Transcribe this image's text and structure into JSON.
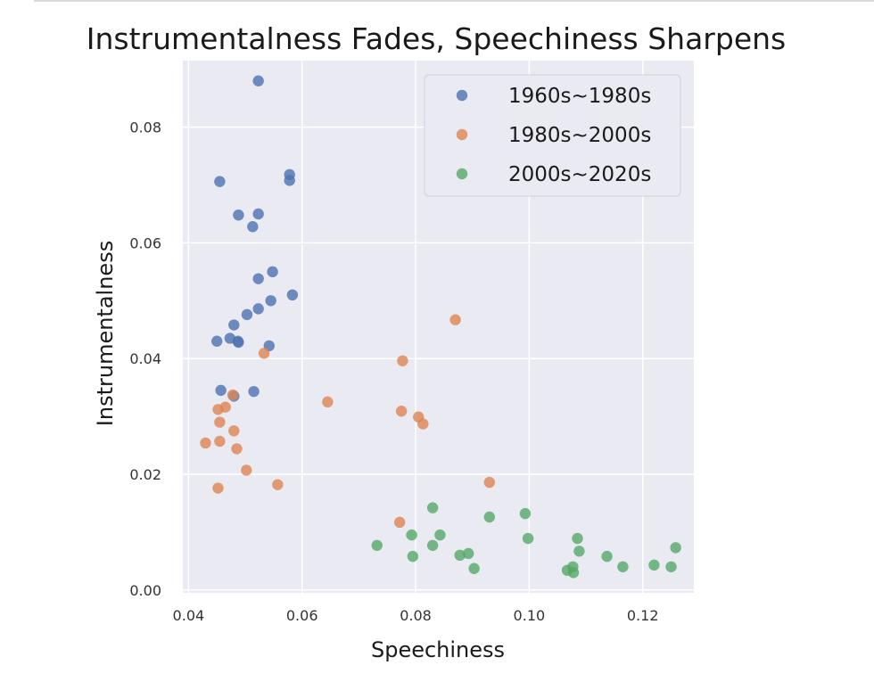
{
  "chart_data": {
    "type": "scatter",
    "title": "Instrumentalness Fades, Speechiness Sharpens",
    "xlabel": "Speechiness",
    "ylabel": "Instrumentalness",
    "xlim": [
      0.039,
      0.129
    ],
    "ylim": [
      -0.0005,
      0.0915
    ],
    "xticks": [
      0.04,
      0.06,
      0.08,
      0.1,
      0.12
    ],
    "xtick_labels": [
      "0.04",
      "0.06",
      "0.08",
      "0.10",
      "0.12"
    ],
    "yticks": [
      0.0,
      0.02,
      0.04,
      0.06,
      0.08
    ],
    "ytick_labels": [
      "0.00",
      "0.02",
      "0.04",
      "0.06",
      "0.08"
    ],
    "grid": true,
    "legend_position": "top-right",
    "series": [
      {
        "name": "1960s~1980s",
        "color": "#4c72b0",
        "points": [
          [
            0.0523,
            0.088
          ],
          [
            0.0455,
            0.0706
          ],
          [
            0.0578,
            0.0718
          ],
          [
            0.0578,
            0.0708
          ],
          [
            0.0488,
            0.0648
          ],
          [
            0.0523,
            0.065
          ],
          [
            0.0513,
            0.0628
          ],
          [
            0.0548,
            0.055
          ],
          [
            0.0523,
            0.0538
          ],
          [
            0.0583,
            0.051
          ],
          [
            0.0545,
            0.05
          ],
          [
            0.0523,
            0.0486
          ],
          [
            0.0503,
            0.0476
          ],
          [
            0.048,
            0.0458
          ],
          [
            0.045,
            0.043
          ],
          [
            0.0473,
            0.0435
          ],
          [
            0.0487,
            0.043
          ],
          [
            0.0488,
            0.0428
          ],
          [
            0.0542,
            0.0422
          ],
          [
            0.0457,
            0.0345
          ],
          [
            0.0515,
            0.0343
          ],
          [
            0.048,
            0.0335
          ]
        ]
      },
      {
        "name": "1980s~2000s",
        "color": "#dd8452",
        "points": [
          [
            0.087,
            0.0467
          ],
          [
            0.0533,
            0.0409
          ],
          [
            0.0777,
            0.0396
          ],
          [
            0.0478,
            0.0337
          ],
          [
            0.0645,
            0.0325
          ],
          [
            0.0465,
            0.0316
          ],
          [
            0.0452,
            0.0312
          ],
          [
            0.0775,
            0.0309
          ],
          [
            0.0805,
            0.0299
          ],
          [
            0.0813,
            0.0287
          ],
          [
            0.0455,
            0.029
          ],
          [
            0.048,
            0.0275
          ],
          [
            0.0455,
            0.0257
          ],
          [
            0.043,
            0.0254
          ],
          [
            0.0485,
            0.0244
          ],
          [
            0.0502,
            0.0207
          ],
          [
            0.093,
            0.0186
          ],
          [
            0.0557,
            0.0182
          ],
          [
            0.0452,
            0.0176
          ],
          [
            0.0772,
            0.0117
          ]
        ]
      },
      {
        "name": "2000s~2020s",
        "color": "#55a868",
        "points": [
          [
            0.083,
            0.0142
          ],
          [
            0.0993,
            0.0132
          ],
          [
            0.093,
            0.0126
          ],
          [
            0.0793,
            0.0095
          ],
          [
            0.0843,
            0.0095
          ],
          [
            0.0998,
            0.0089
          ],
          [
            0.1085,
            0.0089
          ],
          [
            0.0732,
            0.0077
          ],
          [
            0.083,
            0.0077
          ],
          [
            0.1258,
            0.0073
          ],
          [
            0.1088,
            0.0067
          ],
          [
            0.0893,
            0.0063
          ],
          [
            0.0878,
            0.006
          ],
          [
            0.0795,
            0.0058
          ],
          [
            0.1137,
            0.0058
          ],
          [
            0.122,
            0.0043
          ],
          [
            0.125,
            0.004
          ],
          [
            0.1165,
            0.004
          ],
          [
            0.1077,
            0.004
          ],
          [
            0.0903,
            0.0037
          ],
          [
            0.1067,
            0.0034
          ],
          [
            0.1078,
            0.003
          ]
        ]
      }
    ]
  }
}
